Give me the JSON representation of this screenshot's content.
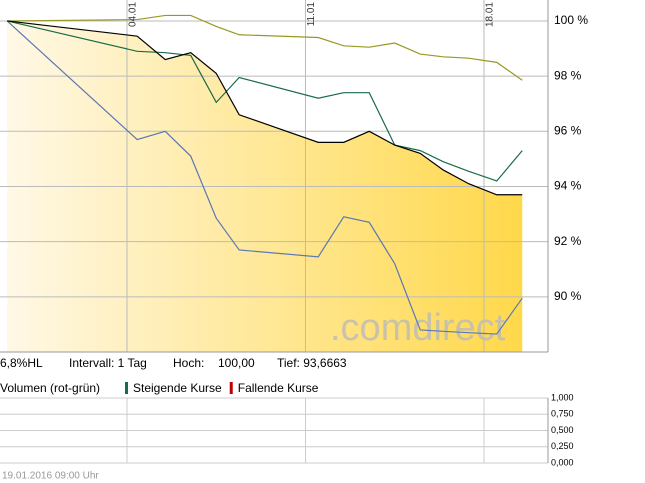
{
  "chart_data": [
    {
      "type": "line",
      "x": [
        -0.7,
        4.4,
        5.5,
        6.5,
        7.5,
        8.4,
        11.5,
        12.5,
        13.5,
        14.5,
        15.5,
        16.4,
        17.4,
        18.5,
        19.5
      ],
      "series": [
        {
          "color": "#000000",
          "fill": [
            "#fff8e6",
            "#ffd84a"
          ],
          "values": [
            100,
            99.45,
            98.6,
            98.85,
            98.1,
            96.6,
            95.6,
            95.6,
            96.0,
            95.5,
            95.2,
            94.6,
            94.1,
            93.7,
            93.7
          ]
        },
        {
          "color": "#999922",
          "values": [
            100,
            100.05,
            100.2,
            100.2,
            99.8,
            99.5,
            99.4,
            99.1,
            99.05,
            99.2,
            98.8,
            98.7,
            98.65,
            98.5,
            97.85
          ]
        },
        {
          "color": "#1a6b4a",
          "values": [
            100,
            98.9,
            98.85,
            98.75,
            97.05,
            97.95,
            97.2,
            97.4,
            97.4,
            95.5,
            95.3,
            94.9,
            94.55,
            94.2,
            95.3
          ]
        },
        {
          "color": "#5a78b4",
          "values": [
            100,
            95.7,
            96.0,
            95.1,
            92.85,
            91.7,
            91.45,
            92.9,
            92.7,
            91.2,
            88.8,
            88.75,
            88.7,
            88.65,
            89.95
          ]
        }
      ],
      "xlim": [
        -0.98,
        20.51
      ],
      "xticks": [
        {
          "value": 4,
          "label": "04.01"
        },
        {
          "value": 11,
          "label": "11.01"
        },
        {
          "value": 18,
          "label": "18.01"
        }
      ],
      "ylim": [
        88,
        100.76
      ],
      "yticks": [
        {
          "value": 100,
          "label": "100 %"
        },
        {
          "value": 98,
          "label": "98 %"
        },
        {
          "value": 96,
          "label": "96 %"
        },
        {
          "value": 94,
          "label": "94 %"
        },
        {
          "value": 92,
          "label": "92 %"
        },
        {
          "value": 90,
          "label": "90 %"
        }
      ],
      "grid": true,
      "watermark": ".comdirect"
    },
    {
      "type": "volume",
      "title": "Volumen (rot-grün)",
      "legend": [
        {
          "name": "Steigende Kurse",
          "color": "#1a6b4a"
        },
        {
          "name": "Fallende Kurse",
          "color": "#c00000"
        }
      ],
      "ylim": [
        0,
        1
      ],
      "yticks": [
        {
          "value": 1,
          "label": "1,000"
        },
        {
          "value": 0.75,
          "label": "0,750"
        },
        {
          "value": 0.5,
          "label": "0,500"
        },
        {
          "value": 0.25,
          "label": "0,250"
        },
        {
          "value": 0,
          "label": "0,000"
        }
      ],
      "grid": true
    }
  ],
  "info": [
    "6,8%HL",
    "Intervall: 1 Tag",
    "Hoch:",
    "100,00",
    "Tief: 93,6663"
  ],
  "timestamp": "19.01.2016 09:00 Uhr"
}
